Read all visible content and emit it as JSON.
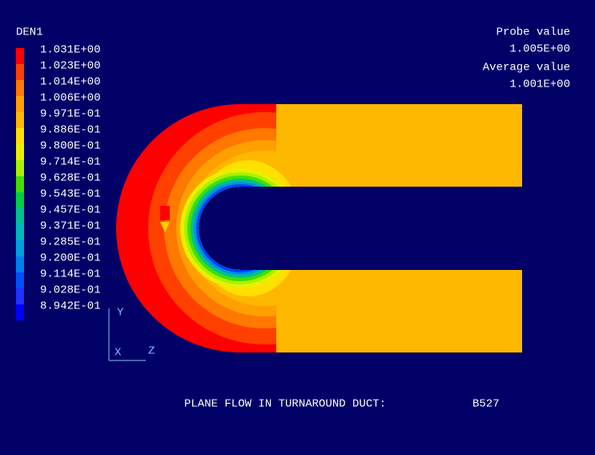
{
  "legend": {
    "title": "DEN1",
    "items": [
      {
        "label": "1.031E+00",
        "color": "#ff0000"
      },
      {
        "label": "1.023E+00",
        "color": "#ff4000"
      },
      {
        "label": "1.014E+00",
        "color": "#ff7800"
      },
      {
        "label": "1.006E+00",
        "color": "#ffa000"
      },
      {
        "label": "9.971E-01",
        "color": "#ffb800"
      },
      {
        "label": "9.886E-01",
        "color": "#ffe000"
      },
      {
        "label": "9.800E-01",
        "color": "#e8f000"
      },
      {
        "label": "9.714E-01",
        "color": "#a8f000"
      },
      {
        "label": "9.628E-01",
        "color": "#40e000"
      },
      {
        "label": "9.543E-01",
        "color": "#00d040"
      },
      {
        "label": "9.457E-01",
        "color": "#00c090"
      },
      {
        "label": "9.371E-01",
        "color": "#00b8c0"
      },
      {
        "label": "9.285E-01",
        "color": "#00a0e0"
      },
      {
        "label": "9.200E-01",
        "color": "#0080f0"
      },
      {
        "label": "9.114E-01",
        "color": "#0050ff"
      },
      {
        "label": "9.028E-01",
        "color": "#2030ff"
      },
      {
        "label": "8.942E-01",
        "color": "#0000ff"
      }
    ]
  },
  "probe": {
    "label": "Probe value",
    "value": "1.005E+00"
  },
  "average": {
    "label": "Average value",
    "value": "1.001E+00"
  },
  "axes": {
    "y": "Y",
    "x": "X",
    "z": "Z"
  },
  "caption": {
    "title": "PLANE FLOW IN TURNAROUND DUCT:",
    "case": "B527"
  }
}
